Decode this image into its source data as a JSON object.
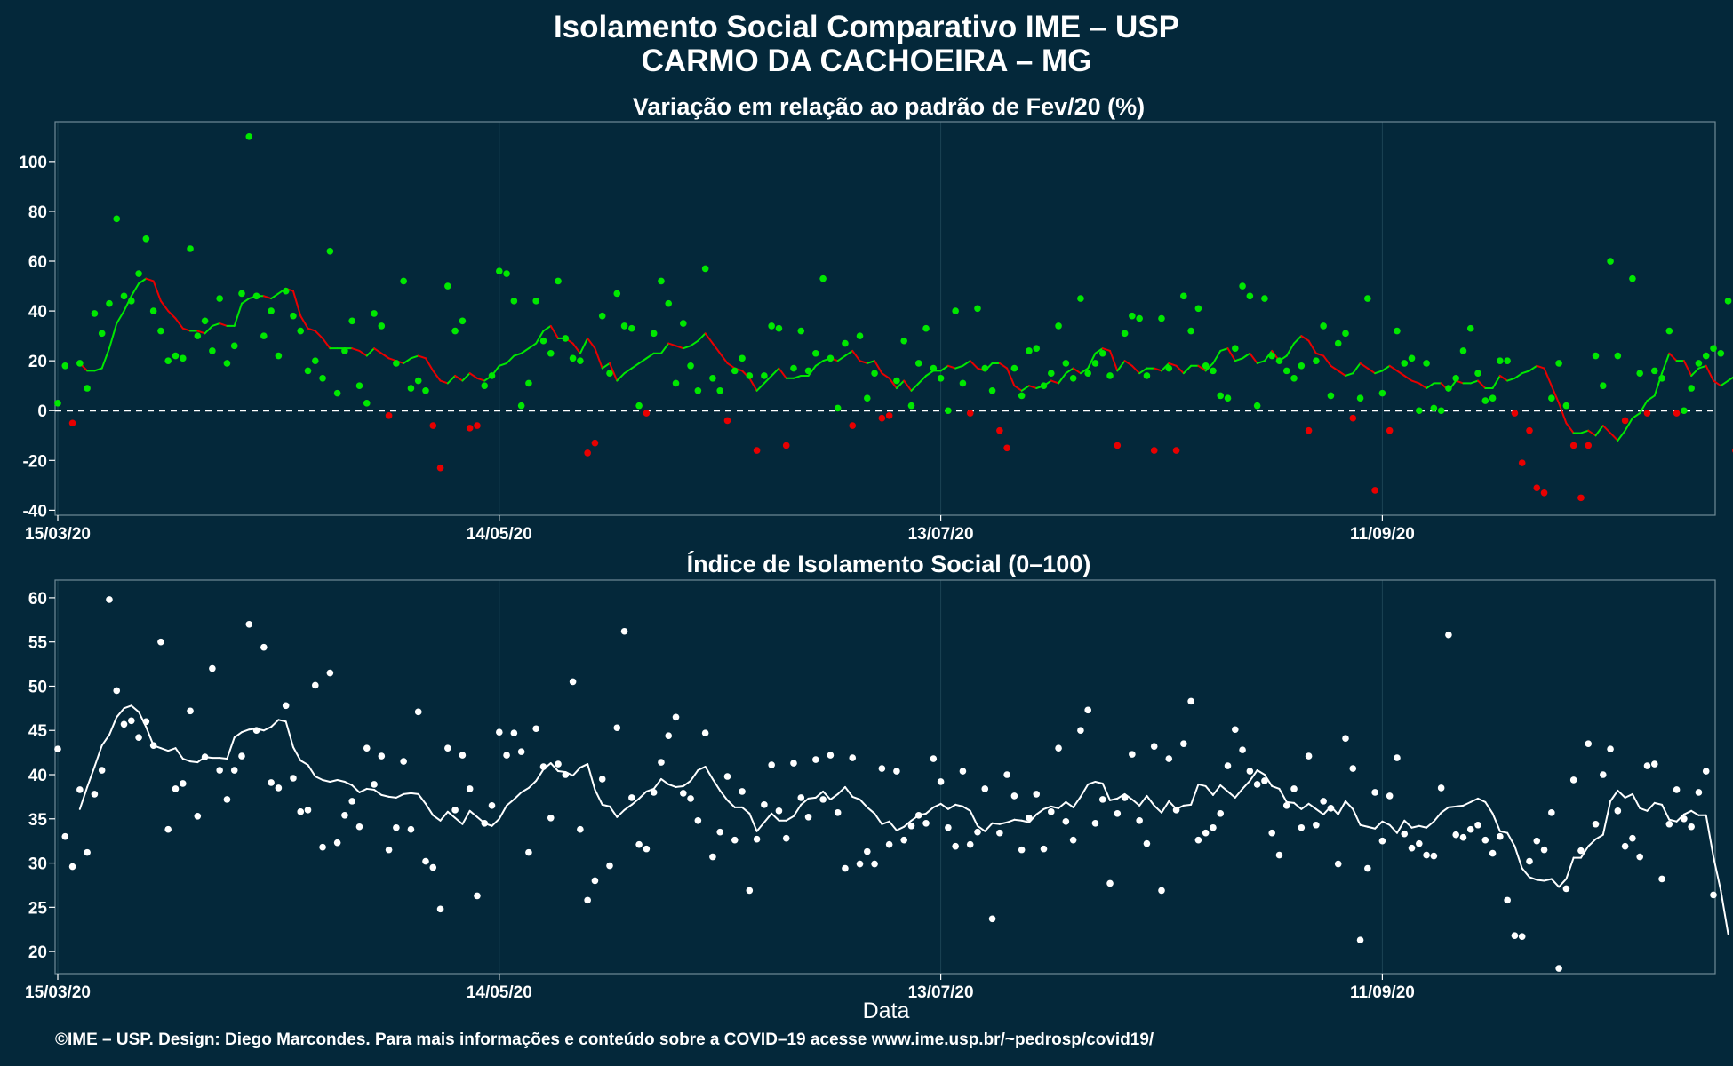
{
  "title": {
    "line1": "Isolamento Social Comparativo IME – USP",
    "line2": "CARMO DA CACHOEIRA – MG"
  },
  "footer": "©IME – USP. Design: Diego Marcondes. Para mais informações e conteúdo sobre a COVID–19 acesse www.ime.usp.br/~pedrosp/covid19/",
  "xlabel": "Data",
  "colors": {
    "background": "#04283a",
    "grid": "#1c4354",
    "positive": "#00e800",
    "negative": "#e80000",
    "index": "#ffffff"
  },
  "chart_data": [
    {
      "type": "scatter",
      "title": "Variação em relação ao padrão de Fev/20 (%)",
      "xlabel": "",
      "ylabel": "",
      "x_start": "15/03/20",
      "x_tick_labels": [
        "15/03/20",
        "14/05/20",
        "13/07/20",
        "11/09/20"
      ],
      "x_tick_days": [
        0,
        60,
        120,
        180
      ],
      "ylim": [
        -42,
        116
      ],
      "y_ticks": [
        -40,
        -20,
        0,
        20,
        40,
        60,
        80,
        100
      ],
      "reference_line": 0,
      "point_colors": "green when value >= 0, red when value < 0",
      "trend": "7-day moving average line",
      "values": [
        3,
        18,
        -5,
        19,
        9,
        39,
        31,
        43,
        77,
        46,
        44,
        55,
        69,
        40,
        32,
        20,
        22,
        21,
        65,
        30,
        36,
        24,
        45,
        19,
        26,
        47,
        110,
        46,
        30,
        40,
        22,
        48,
        38,
        32,
        16,
        20,
        13,
        64,
        7,
        24,
        36,
        10,
        3,
        39,
        34,
        -2,
        19,
        52,
        9,
        12,
        8,
        -6,
        -23,
        50,
        32,
        36,
        -7,
        -6,
        10,
        14,
        56,
        55,
        44,
        2,
        11,
        44,
        28,
        23,
        52,
        29,
        21,
        20,
        -17,
        -13,
        38,
        15,
        47,
        34,
        33,
        2,
        -1,
        31,
        52,
        43,
        11,
        35,
        18,
        8,
        57,
        13,
        8,
        -4,
        16,
        21,
        14,
        -16,
        14,
        34,
        33,
        -14,
        17,
        32,
        16,
        23,
        53,
        21,
        1,
        27,
        -6,
        30,
        5,
        15,
        -3,
        -2,
        12,
        28,
        2,
        19,
        33,
        17,
        13,
        0,
        40,
        11,
        -1,
        41,
        17,
        8,
        -8,
        -15,
        17,
        6,
        24,
        25,
        10,
        15,
        34,
        19,
        13,
        45,
        15,
        19,
        23,
        14,
        -14,
        31,
        38,
        37,
        14,
        -16,
        37,
        17,
        -16,
        46,
        32,
        41,
        18,
        16,
        6,
        5,
        25,
        50,
        46,
        2,
        45,
        22,
        20,
        16,
        13,
        18,
        -8,
        20,
        34,
        6,
        27,
        31,
        -3,
        5,
        45,
        -32,
        7,
        -8,
        32,
        19,
        21,
        0,
        19,
        1,
        0,
        9,
        13,
        24,
        33,
        15,
        4,
        5,
        20,
        20,
        -1,
        -21,
        -8,
        -31,
        -33,
        5,
        19,
        2,
        -14,
        -35,
        -14,
        22,
        10,
        60,
        22,
        -4,
        53,
        15,
        -1,
        16,
        13,
        32,
        -1,
        0,
        9,
        19,
        22,
        25,
        23,
        44,
        -16
      ],
      "moving_average": [
        19,
        16,
        16,
        17,
        25,
        35,
        40,
        46,
        51,
        53,
        52,
        44,
        40,
        37,
        33,
        32,
        32,
        31,
        34,
        35,
        34,
        34,
        43,
        45,
        46,
        46,
        45,
        47,
        49,
        48,
        38,
        33,
        32,
        29,
        25,
        25,
        25,
        25,
        24,
        22,
        25,
        23,
        21,
        20,
        19,
        21,
        22,
        21,
        16,
        12,
        11,
        14,
        12,
        15,
        13,
        12,
        14,
        18,
        19,
        22,
        23,
        25,
        27,
        32,
        34,
        29,
        29,
        27,
        23,
        29,
        25,
        17,
        19,
        12,
        15,
        17,
        19,
        21,
        23,
        23,
        27,
        26,
        25,
        26,
        28,
        31,
        27,
        23,
        19,
        17,
        16,
        13,
        8,
        11,
        14,
        17,
        13,
        13,
        14,
        14,
        18,
        20,
        21,
        20,
        22,
        24,
        20,
        19,
        20,
        15,
        13,
        9,
        12,
        8,
        11,
        14,
        16,
        16,
        18,
        17,
        18,
        20,
        17,
        16,
        19,
        19,
        17,
        10,
        8,
        10,
        9,
        10,
        12,
        11,
        15,
        17,
        15,
        17,
        23,
        25,
        24,
        16,
        20,
        18,
        15,
        17,
        17,
        16,
        19,
        18,
        15,
        18,
        18,
        16,
        19,
        24,
        25,
        20,
        21,
        23,
        19,
        20,
        24,
        20,
        22,
        27,
        30,
        28,
        23,
        22,
        18,
        16,
        14,
        15,
        19,
        17,
        15,
        16,
        18,
        16,
        14,
        12,
        11,
        9,
        11,
        11,
        8,
        12,
        11,
        11,
        12,
        9,
        9,
        14,
        12,
        13,
        15,
        16,
        18,
        17,
        10,
        3,
        -5,
        -9,
        -9,
        -8,
        -10,
        -6,
        -9,
        -12,
        -8,
        -3,
        -1,
        4,
        6,
        15,
        23,
        20,
        20,
        14,
        17,
        18,
        12,
        10,
        12,
        14,
        16,
        14,
        16
      ]
    },
    {
      "type": "scatter",
      "title": "Índice de Isolamento Social (0–100)",
      "xlabel": "Data",
      "ylabel": "",
      "x_start": "15/03/20",
      "x_tick_labels": [
        "15/03/20",
        "14/05/20",
        "13/07/20",
        "11/09/20"
      ],
      "x_tick_days": [
        0,
        60,
        120,
        180
      ],
      "ylim": [
        17.5,
        62
      ],
      "y_ticks": [
        20,
        25,
        30,
        35,
        40,
        45,
        50,
        55,
        60
      ],
      "trend": "7-day moving average line",
      "values": [
        42.9,
        33,
        29.6,
        38.3,
        31.2,
        37.8,
        40.5,
        59.8,
        49.5,
        45.7,
        46.1,
        44.2,
        46,
        43.3,
        55,
        33.8,
        38.4,
        39,
        47.2,
        35.3,
        42,
        52,
        40.5,
        37.2,
        40.5,
        42.1,
        57,
        45,
        54.4,
        39.1,
        38.5,
        47.8,
        39.6,
        35.8,
        36,
        50.1,
        31.8,
        51.5,
        32.3,
        35.4,
        37,
        34.1,
        43,
        38.9,
        42.1,
        31.5,
        34,
        41.5,
        33.8,
        47.1,
        30.2,
        29.5,
        24.8,
        43,
        36,
        42.2,
        38.4,
        26.3,
        34.5,
        36.5,
        44.8,
        42.2,
        44.7,
        42.6,
        31.2,
        45.2,
        40.9,
        35.1,
        41.2,
        40,
        50.5,
        33.8,
        25.8,
        28,
        39.5,
        29.7,
        45.3,
        56.2,
        37.4,
        32.1,
        31.6,
        38,
        41.4,
        44.4,
        46.5,
        37.9,
        37.3,
        34.8,
        44.7,
        30.7,
        33.5,
        39.8,
        32.6,
        38.1,
        26.9,
        32.7,
        36.6,
        41.1,
        35.9,
        32.8,
        41.3,
        37.4,
        35.2,
        41.7,
        37.2,
        42.2,
        35.7,
        29.4,
        41.9,
        29.9,
        31.3,
        29.9,
        40.7,
        32.1,
        40.4,
        32.6,
        34.2,
        35.4,
        34.5,
        41.8,
        39.2,
        34,
        31.9,
        40.4,
        32.1,
        33.5,
        38.4,
        23.7,
        33.4,
        40,
        37.6,
        31.5,
        35.1,
        37.8,
        31.6,
        35.8,
        43,
        34.7,
        32.6,
        45,
        47.3,
        34.5,
        37.2,
        27.7,
        35.6,
        37.4,
        42.3,
        34.8,
        32.2,
        43.2,
        26.9,
        41.8,
        36,
        43.5,
        48.3,
        32.6,
        33.4,
        34,
        35.6,
        41,
        45.1,
        42.8,
        40.4,
        38.9,
        39.3,
        33.4,
        30.9,
        36.5,
        38.4,
        34,
        42.1,
        34.3,
        37,
        36.2,
        29.9,
        44.1,
        40.7,
        21.3,
        29.4,
        38,
        32.5,
        37.6,
        41.9,
        33.3,
        31.7,
        32.2,
        30.9,
        30.8,
        38.5,
        55.8,
        33.2,
        32.9,
        33.8,
        34.3,
        32.6,
        31.1,
        33,
        25.8,
        21.8,
        21.7,
        30.2,
        32.5,
        31.5,
        35.7,
        18.1,
        27.1,
        39.4,
        31.4,
        43.5,
        34.4,
        40,
        42.9,
        35.9,
        31.9,
        32.8,
        30.7,
        41,
        41.2,
        28.2,
        34.4,
        38.3,
        35,
        34.1,
        38,
        40.4,
        26.4
      ],
      "moving_average": [
        36.1,
        38.6,
        40.9,
        43.3,
        44.5,
        46.5,
        47.5,
        47.8,
        47.1,
        45.4,
        43.3,
        43,
        42.7,
        43,
        41.8,
        41.5,
        41.4,
        42,
        41.9,
        41.9,
        41.8,
        44.2,
        44.8,
        45.1,
        45.2,
        45,
        45.4,
        46.2,
        46,
        43.1,
        41.6,
        41.1,
        39.8,
        39.4,
        39.2,
        39.4,
        39.2,
        38.8,
        38,
        38.4,
        38.3,
        37.7,
        37.5,
        37.4,
        37.8,
        37.9,
        37.8,
        36.7,
        35.4,
        34.8,
        35.8,
        35.1,
        34.4,
        35.9,
        35.2,
        34.5,
        34.2,
        35,
        36.5,
        37.2,
        38,
        38.5,
        39.3,
        40.6,
        41.3,
        40.4,
        40.3,
        39.9,
        40.8,
        41.2,
        38.3,
        36.6,
        36.4,
        35.2,
        36,
        36.6,
        37.3,
        38.1,
        38.4,
        39.5,
        38.9,
        38.6,
        38.7,
        39.3,
        40.5,
        40.9,
        39.5,
        38.2,
        37.1,
        36.3,
        36.3,
        35.6,
        33.6,
        34.6,
        35.6,
        34.8,
        34.8,
        35.3,
        36.6,
        37.3,
        37.4,
        38.1,
        37.2,
        37.8,
        38.6,
        37.5,
        37.2,
        36.3,
        35.6,
        34.4,
        34.7,
        33.7,
        34.1,
        34.8,
        35.4,
        35.6,
        36.3,
        36.7,
        36.1,
        36.6,
        36.4,
        35.9,
        34.2,
        33.6,
        34.5,
        34.4,
        34.6,
        34.9,
        34.8,
        34.6,
        35.5,
        36.1,
        36.4,
        36.2,
        36.9,
        36.3,
        37.5,
        38.9,
        39.2,
        39,
        37.1,
        37.3,
        37.8,
        37.2,
        36.5,
        37.6,
        36.5,
        35.7,
        37,
        36.1,
        36.5,
        36.6,
        38.9,
        38.7,
        37.7,
        38.8,
        38.1,
        37.4,
        38.4,
        39.3,
        40.5,
        40,
        38.7,
        38.4,
        36.9,
        36.8,
        36.1,
        36.7,
        36.1,
        35.5,
        36.4,
        35.5,
        37,
        36.1,
        34.3,
        34.1,
        33.9,
        34.7,
        34.3,
        33.4,
        34.8,
        34,
        34.2,
        34,
        34.7,
        35.7,
        36.3,
        36.4,
        36.5,
        36.9,
        37.3,
        36.9,
        35.6,
        33.6,
        33.4,
        31.9,
        29.4,
        28.4,
        28.1,
        28,
        28.2,
        27.3,
        28.2,
        30.6,
        30.6,
        31.9,
        32.7,
        33.2,
        37,
        38.2,
        37.4,
        37.8,
        36.2,
        35.9,
        36.8,
        36.6,
        34.9,
        34.7,
        35.5,
        35.9,
        35.4,
        35.4,
        30.7,
        26.9,
        22
      ]
    }
  ]
}
